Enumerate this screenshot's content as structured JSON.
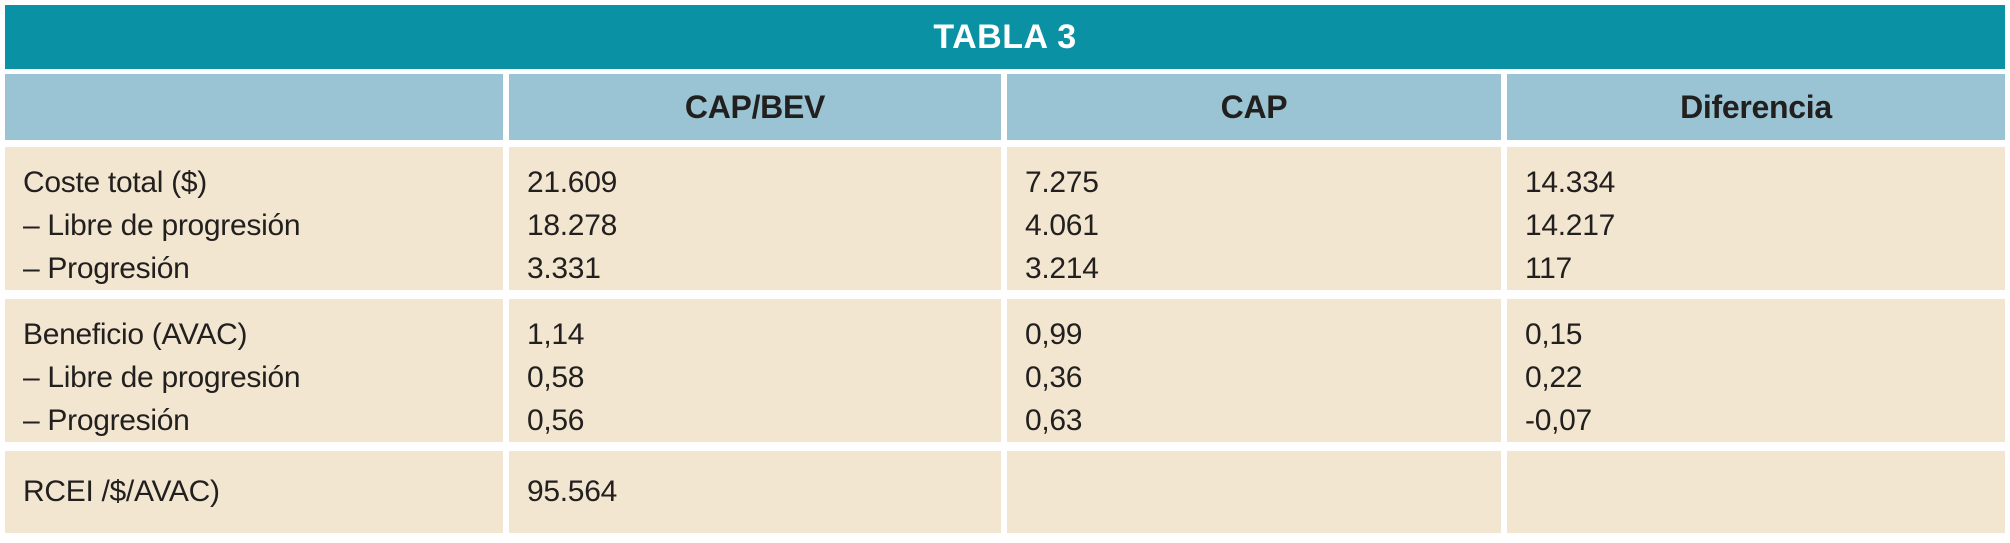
{
  "table": {
    "title": "TABLA 3",
    "columns": [
      "",
      "CAP/BEV",
      "CAP",
      "Diferencia"
    ],
    "groups": [
      {
        "rows": [
          {
            "label": "Coste total ($)",
            "cap_bev": "21.609",
            "cap": "7.275",
            "diferencia": "14.334"
          },
          {
            "label": "– Libre de progresión",
            "cap_bev": "18.278",
            "cap": "4.061",
            "diferencia": "14.217"
          },
          {
            "label": "– Progresión",
            "cap_bev": "3.331",
            "cap": "3.214",
            "diferencia": "117"
          }
        ]
      },
      {
        "rows": [
          {
            "label": "Beneficio (AVAC)",
            "cap_bev": "1,14",
            "cap": "0,99",
            "diferencia": "0,15"
          },
          {
            "label": "– Libre de progresión",
            "cap_bev": "0,58",
            "cap": "0,36",
            "diferencia": "0,22"
          },
          {
            "label": "– Progresión",
            "cap_bev": "0,56",
            "cap": "0,63",
            "diferencia": "-0,07"
          }
        ]
      },
      {
        "rows": [
          {
            "label": "RCEI /$/AVAC)",
            "cap_bev": "95.564",
            "cap": "",
            "diferencia": ""
          }
        ]
      }
    ]
  },
  "colors": {
    "title_bg": "#0A92A4",
    "header_bg": "#9AC4D3",
    "body_bg": "#F2E6D0",
    "title_text": "#FFFFFF",
    "body_text": "#221F1F",
    "page_bg": "#FFFFFF"
  },
  "chart_data": {
    "type": "table",
    "title": "TABLA 3",
    "columns": [
      "",
      "CAP/BEV",
      "CAP",
      "Diferencia"
    ],
    "rows": [
      [
        "Coste total ($)",
        "21.609",
        "7.275",
        "14.334"
      ],
      [
        "– Libre de progresión",
        "18.278",
        "4.061",
        "14.217"
      ],
      [
        "– Progresión",
        "3.331",
        "3.214",
        "117"
      ],
      [
        "Beneficio (AVAC)",
        "1,14",
        "0,99",
        "0,15"
      ],
      [
        "– Libre de progresión",
        "0,58",
        "0,36",
        "0,22"
      ],
      [
        "– Progresión",
        "0,56",
        "0,63",
        "-0,07"
      ],
      [
        "RCEI /$/AVAC)",
        "95.564",
        "",
        ""
      ]
    ]
  }
}
